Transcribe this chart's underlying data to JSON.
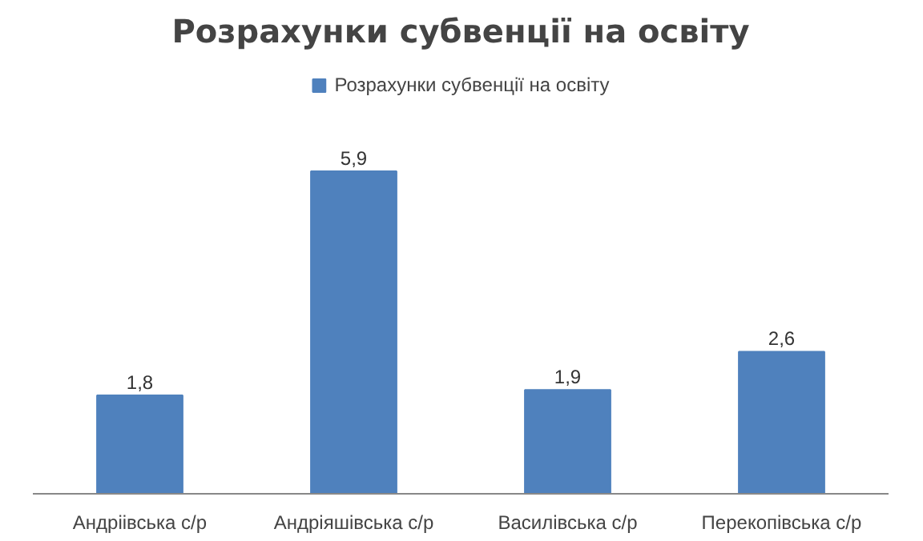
{
  "chart_data": {
    "type": "bar",
    "title": "Розрахунки субвенції на освіту",
    "categories": [
      "Андріівська с/р",
      "Андріяшівська с/р",
      "Василівська с/р",
      "Перекопівська с/р"
    ],
    "series": [
      {
        "name": "Розрахунки субвенції на освіту",
        "color": "#4f81bd",
        "values": [
          1.8,
          5.9,
          1.9,
          2.6
        ],
        "value_labels": [
          "1,8",
          "5,9",
          "1,9",
          "2,6"
        ]
      }
    ],
    "legend": "top",
    "grid": false,
    "tick_labels": "x"
  }
}
